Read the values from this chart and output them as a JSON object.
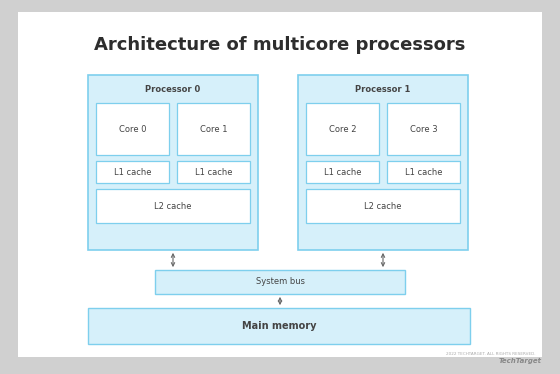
{
  "title": "Architecture of multicore processors",
  "title_fontsize": 13,
  "title_fontweight": "bold",
  "title_color": "#2d2d2d",
  "outer_bg": "#d0d0d0",
  "card_bg": "#ffffff",
  "box_fill": "#d6f0fa",
  "box_edge": "#7ecfed",
  "white_fill": "#ffffff",
  "white_edge": "#7ecfed",
  "text_color": "#444444",
  "label_fontsize": 6.0,
  "processors": [
    {
      "label": "Processor 0",
      "cores": [
        "Core 0",
        "Core 1"
      ],
      "l1": [
        "L1 cache",
        "L1 cache"
      ],
      "l2": "L2 cache"
    },
    {
      "label": "Processor 1",
      "cores": [
        "Core 2",
        "Core 3"
      ],
      "l1": [
        "L1 cache",
        "L1 cache"
      ],
      "l2": "L2 cache"
    }
  ],
  "system_bus_label": "System bus",
  "main_memory_label": "Main memory",
  "watermark_line1": "2022 TECHTARGET. ALL RIGHTS RESERVED.",
  "watermark_line2": "TechTarget"
}
